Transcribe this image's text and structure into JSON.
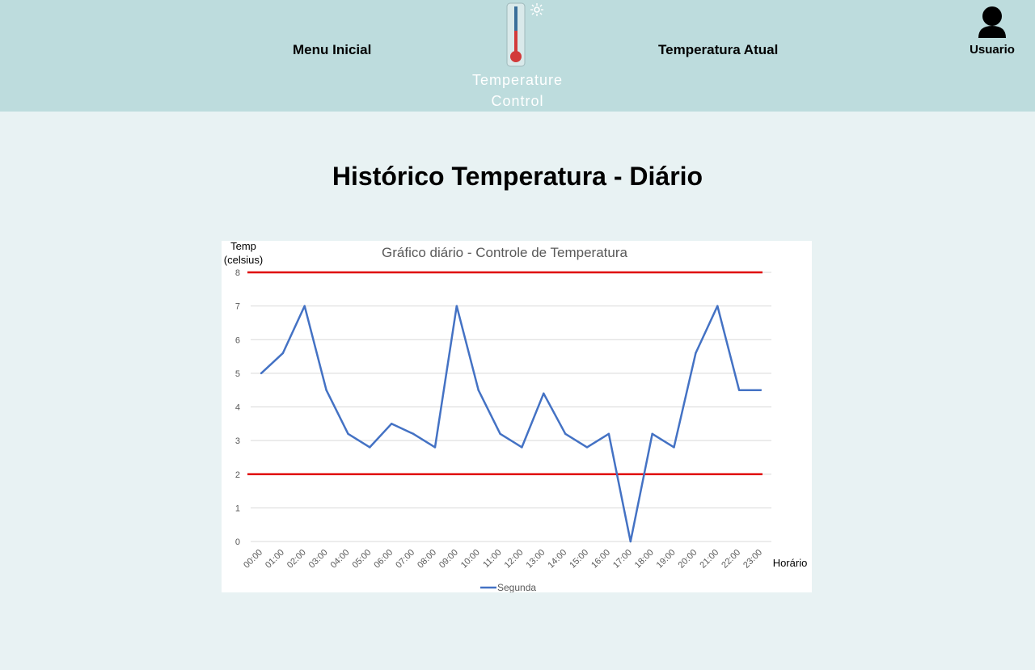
{
  "header": {
    "nav_left": "Menu Inicial",
    "nav_right": "Temperatura Atual",
    "logo_line1": "Temperature",
    "logo_line2": "Control",
    "user_label": "Usuario",
    "logo_icon": "thermometer-icon",
    "user_icon": "user-icon"
  },
  "main": {
    "title": "Histórico Temperatura - Diário"
  },
  "colors": {
    "header_bg": "#bddcdd",
    "page_bg": "#e8f2f3",
    "series": "#4472c4",
    "limit": "#e00000"
  },
  "chart_data": {
    "type": "line",
    "title": "Gráfico diário - Controle de Temperatura",
    "ylabel_line1": "Temp",
    "ylabel_line2": "(celsius)",
    "xlabel": "Horário",
    "ylim": [
      0,
      8
    ],
    "yticks": [
      0,
      1,
      2,
      3,
      4,
      5,
      6,
      7,
      8
    ],
    "grid": true,
    "legend_position": "bottom",
    "categories": [
      "00:00",
      "01:00",
      "02:00",
      "03:00",
      "04:00",
      "05:00",
      "06:00",
      "07:00",
      "08:00",
      "09:00",
      "10:00",
      "11:00",
      "12:00",
      "13:00",
      "14:00",
      "15:00",
      "16:00",
      "17:00",
      "18:00",
      "19:00",
      "20:00",
      "21:00",
      "22:00",
      "23:00"
    ],
    "series": [
      {
        "name": "Segunda",
        "values": [
          5,
          5.6,
          7,
          4.5,
          3.2,
          2.8,
          3.5,
          3.2,
          2.8,
          7,
          4.5,
          3.2,
          2.8,
          4.4,
          3.2,
          2.8,
          3.2,
          0,
          3.2,
          2.8,
          5.6,
          7,
          4.5,
          4.5
        ]
      }
    ],
    "limit_lines": [
      8,
      2
    ]
  }
}
